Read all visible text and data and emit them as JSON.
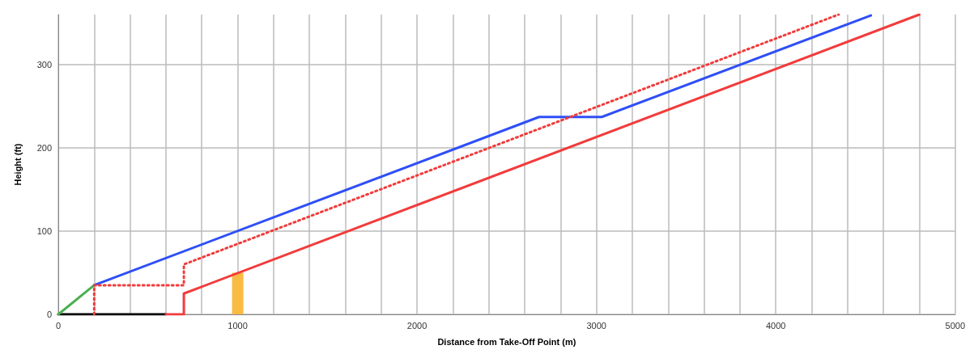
{
  "chart_data": {
    "type": "line",
    "xlabel": "Distance from Take-Off Point (m)",
    "ylabel": "Height (ft)",
    "xlim": [
      0,
      5000
    ],
    "ylim": [
      0,
      360
    ],
    "xticks": [
      0,
      {
        "value": 200,
        "label": null
      },
      {
        "value": 400,
        "label": null
      },
      {
        "value": 600,
        "label": null
      },
      {
        "value": 800,
        "label": null
      },
      1000,
      {
        "value": 1200,
        "label": null
      },
      {
        "value": 1400,
        "label": null
      },
      {
        "value": 1600,
        "label": null
      },
      {
        "value": 1800,
        "label": null
      },
      2000,
      {
        "value": 2200,
        "label": null
      },
      {
        "value": 2400,
        "label": null
      },
      {
        "value": 2600,
        "label": null
      },
      {
        "value": 2800,
        "label": null
      },
      3000,
      {
        "value": 3200,
        "label": null
      },
      {
        "value": 3400,
        "label": null
      },
      {
        "value": 3600,
        "label": null
      },
      {
        "value": 3800,
        "label": null
      },
      4000,
      {
        "value": 4200,
        "label": null
      },
      {
        "value": 4400,
        "label": null
      },
      {
        "value": 4600,
        "label": null
      },
      {
        "value": 4800,
        "label": null
      },
      5000
    ],
    "yticks": [
      0,
      100,
      200,
      300
    ],
    "grid": true,
    "marker": "none",
    "series": [
      {
        "type": "bar",
        "color": "#f9bb42",
        "x": [
          1000
        ],
        "values": [
          50
        ]
      },
      {
        "color": "#000000",
        "x": [
          0,
          600
        ],
        "values": [
          0,
          0
        ]
      },
      {
        "color": "#4caf50",
        "x": [
          0,
          200
        ],
        "values": [
          0,
          35
        ]
      },
      {
        "color": "#2e4ff7",
        "x": [
          200,
          2680,
          3030,
          4530
        ],
        "values": [
          35,
          237,
          237,
          359
        ]
      },
      {
        "color": "#f23b3b",
        "line_style": "dotted",
        "x": [
          200,
          200,
          700,
          700,
          4350
        ],
        "values": [
          0,
          35,
          35,
          60,
          360
        ]
      },
      {
        "color": "#f23b3b",
        "x": [
          600,
          700,
          700,
          4800
        ],
        "values": [
          0,
          0,
          25,
          360
        ]
      }
    ]
  }
}
